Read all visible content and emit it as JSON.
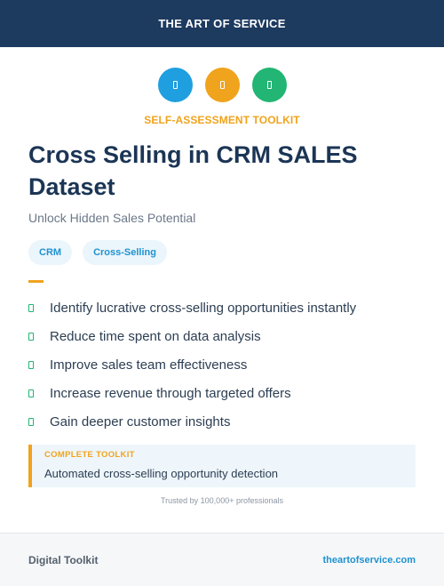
{
  "header": {
    "brand": "THE ART OF SERVICE"
  },
  "icons": [
    {
      "name": "document-icon",
      "color": "#1f9fe0"
    },
    {
      "name": "document-icon",
      "color": "#f0a31c"
    },
    {
      "name": "document-icon",
      "color": "#22b573"
    }
  ],
  "kicker": "SELF-ASSESSMENT TOOLKIT",
  "title": "Cross Selling in CRM SALES Dataset",
  "subtitle": "Unlock Hidden Sales Potential",
  "tags": [
    "CRM",
    "Cross-Selling"
  ],
  "benefits": [
    "Identify lucrative cross-selling opportunities instantly",
    "Reduce time spent on data analysis",
    "Improve sales team effectiveness",
    "Increase revenue through targeted offers",
    "Gain deeper customer insights"
  ],
  "callout": {
    "label": "COMPLETE TOOLKIT",
    "text": "Automated cross-selling opportunity detection"
  },
  "trusted": "Trusted by 100,000+ professionals",
  "footer": {
    "left": "Digital Toolkit",
    "right": "theartofservice.com"
  },
  "colors": {
    "navy": "#1d3a5f",
    "accent": "#f0a31c",
    "green": "#22b573",
    "blue": "#1f92d0"
  }
}
